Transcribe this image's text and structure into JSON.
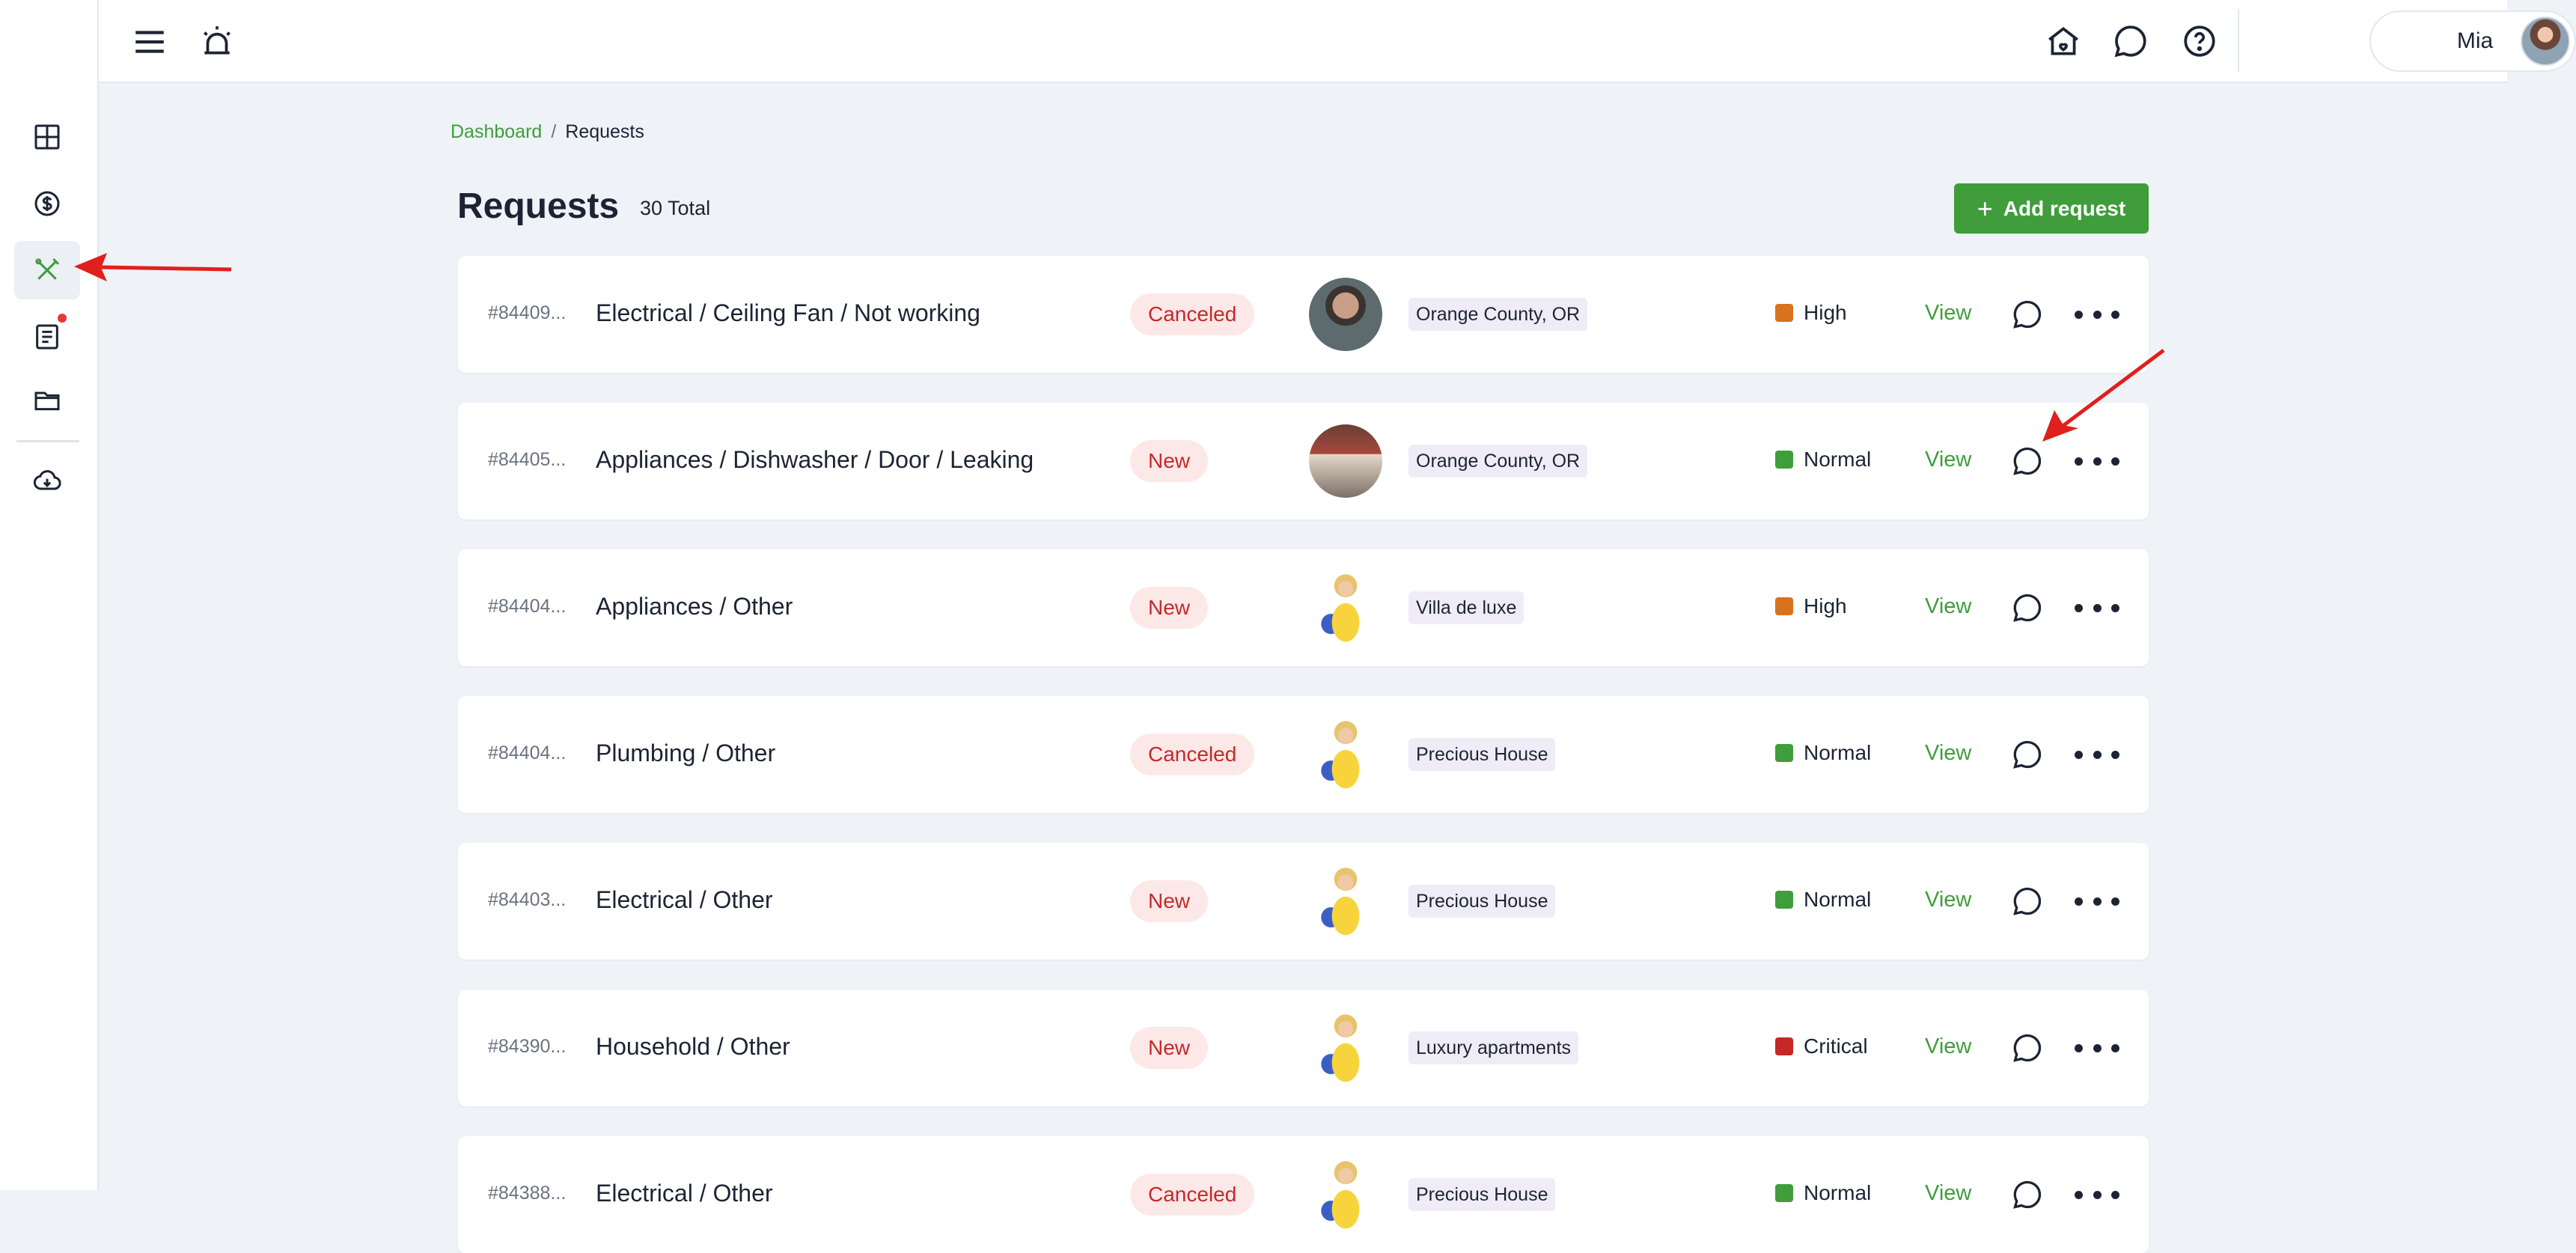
{
  "sidebar": {
    "items": [
      {
        "icon": "dashboard-grid-icon"
      },
      {
        "icon": "dollar-circle-icon"
      },
      {
        "icon": "tools-icon",
        "active": true
      },
      {
        "icon": "document-list-icon",
        "badge": true
      },
      {
        "icon": "folder-icon"
      },
      {
        "icon": "cloud-download-icon"
      }
    ]
  },
  "topbar": {
    "icons": [
      "menu-icon",
      "alarm-icon",
      "home-icon",
      "chat-icon",
      "help-icon"
    ],
    "user": {
      "name": "Mia"
    }
  },
  "breadcrumb": {
    "parent": "Dashboard",
    "separator": "/",
    "current": "Requests"
  },
  "header": {
    "title": "Requests",
    "total": "30 Total",
    "add_label": "Add request",
    "add_symbol": "+"
  },
  "requests": [
    {
      "id": "#84409...",
      "title": "Electrical / Ceiling Fan / Not working",
      "status": "Canceled",
      "avatar": "man",
      "location": "Orange County, OR",
      "priority": "High",
      "priority_color": "#d9721c",
      "view": "View"
    },
    {
      "id": "#84405...",
      "title": "Appliances / Dishwasher / Door / Leaking",
      "status": "New",
      "avatar": "house",
      "location": "Orange County, OR",
      "priority": "Normal",
      "priority_color": "#3f9d3c",
      "view": "View"
    },
    {
      "id": "#84404...",
      "title": "Appliances / Other",
      "status": "New",
      "avatar": "cleaner",
      "location": "Villa de luxe",
      "priority": "High",
      "priority_color": "#d9721c",
      "view": "View"
    },
    {
      "id": "#84404...",
      "title": "Plumbing / Other",
      "status": "Canceled",
      "avatar": "cleaner",
      "location": "Precious House",
      "priority": "Normal",
      "priority_color": "#3f9d3c",
      "view": "View"
    },
    {
      "id": "#84403...",
      "title": "Electrical / Other",
      "status": "New",
      "avatar": "cleaner",
      "location": "Precious House",
      "priority": "Normal",
      "priority_color": "#3f9d3c",
      "view": "View"
    },
    {
      "id": "#84390...",
      "title": "Household / Other",
      "status": "New",
      "avatar": "cleaner",
      "location": "Luxury apartments",
      "priority": "Critical",
      "priority_color": "#c62828",
      "view": "View"
    },
    {
      "id": "#84388...",
      "title": "Electrical / Other",
      "status": "Canceled",
      "avatar": "cleaner",
      "location": "Precious House",
      "priority": "Normal",
      "priority_color": "#3f9d3c",
      "view": "View"
    }
  ],
  "colors": {
    "accent": "#3f9d3c",
    "status_bg": "#fde8e8",
    "status_text": "#c62828",
    "annotation": "#e0201c"
  }
}
